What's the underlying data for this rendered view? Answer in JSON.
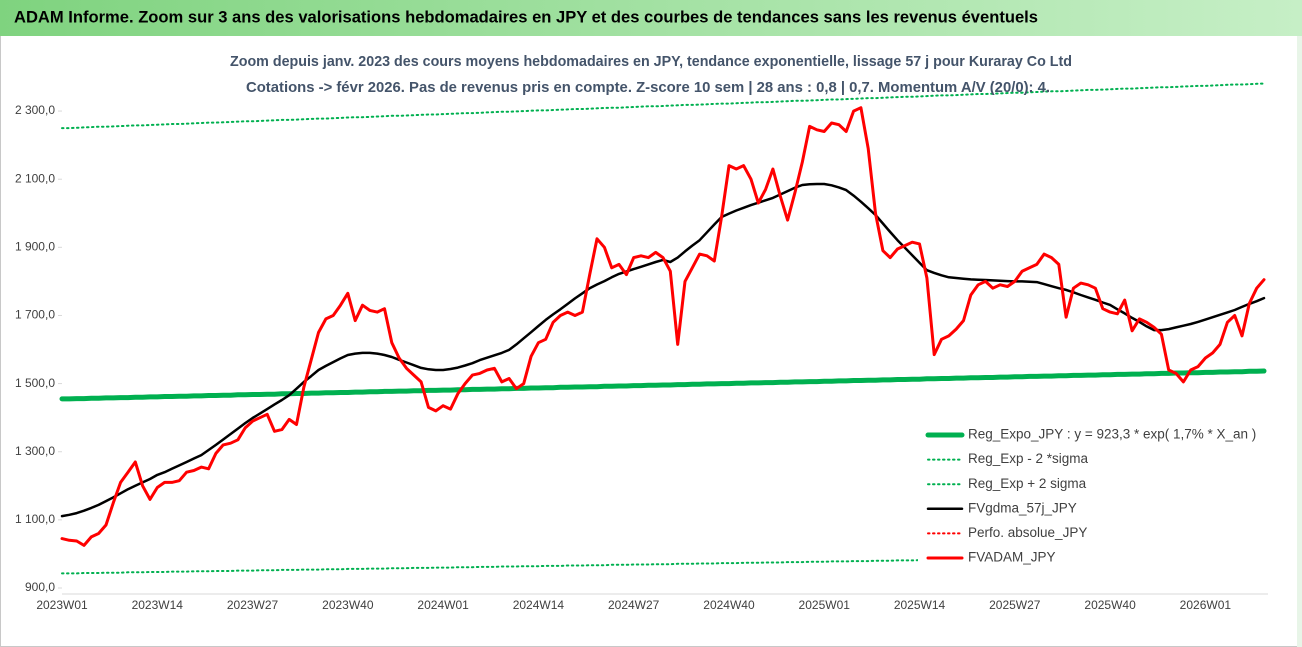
{
  "header": {
    "title": "ADAM Informe. Zoom sur 3 ans des valorisations hebdomadaires en JPY et des courbes de tendances sans les revenus éventuels"
  },
  "chart_data": {
    "type": "line",
    "title": "Zoom depuis janv. 2023 des cours moyens hebdomadaires en JPY, tendance exponentielle, lissage 57 j pour Kuraray Co Ltd",
    "subtitle": "Cotations -> févr 2026.  Pas de revenus pris en compte. Z-score 10 sem | 28 ans : 0,8 | 0,7. Momentum A/V (20/0): 4.",
    "categories": [
      "2023W01",
      null,
      null,
      null,
      null,
      null,
      null,
      null,
      null,
      null,
      null,
      null,
      null,
      "2023W14",
      null,
      null,
      null,
      null,
      null,
      null,
      null,
      null,
      null,
      null,
      null,
      null,
      "2023W27",
      null,
      null,
      null,
      null,
      null,
      null,
      null,
      null,
      null,
      null,
      null,
      null,
      "2023W40",
      null,
      null,
      null,
      null,
      null,
      null,
      null,
      null,
      null,
      null,
      null,
      null,
      "2024W01",
      null,
      null,
      null,
      null,
      null,
      null,
      null,
      null,
      null,
      null,
      null,
      null,
      "2024W14",
      null,
      null,
      null,
      null,
      null,
      null,
      null,
      null,
      null,
      null,
      null,
      null,
      "2024W27",
      null,
      null,
      null,
      null,
      null,
      null,
      null,
      null,
      null,
      null,
      null,
      null,
      "2024W40",
      null,
      null,
      null,
      null,
      null,
      null,
      null,
      null,
      null,
      null,
      null,
      null,
      "2025W01",
      null,
      null,
      null,
      null,
      null,
      null,
      null,
      null,
      null,
      null,
      null,
      null,
      "2025W14",
      null,
      null,
      null,
      null,
      null,
      null,
      null,
      null,
      null,
      null,
      null,
      null,
      "2025W27",
      null,
      null,
      null,
      null,
      null,
      null,
      null,
      null,
      null,
      null,
      null,
      null,
      "2025W40",
      null,
      null,
      null,
      null,
      null,
      null,
      null,
      null,
      null,
      null,
      null,
      null,
      "2026W01",
      null,
      null,
      null,
      null,
      null,
      null,
      null,
      null
    ],
    "ylim": [
      900,
      2400
    ],
    "yticks": [
      {
        "value": 900,
        "label": "900,0"
      },
      {
        "value": 1100,
        "label": "1 100,0"
      },
      {
        "value": 1300,
        "label": "1 300,0"
      },
      {
        "value": 1500,
        "label": "1 500,0"
      },
      {
        "value": 1700,
        "label": "1 700,0"
      },
      {
        "value": 1900,
        "label": "1 900,0"
      },
      {
        "value": 2100,
        "label": "2 100,0"
      },
      {
        "value": 2300,
        "label": "2 300,0"
      }
    ],
    "grid": false,
    "legend": "right",
    "series": [
      {
        "name": "Reg_Expo_JPY : y = 923,3 * exp( 1,7% *  X_an )",
        "color": "#00b050",
        "style": "solid",
        "width": 5,
        "values": [
          1455,
          1455,
          1456,
          1456,
          1457,
          1457,
          1458,
          1458,
          1459,
          1459,
          1460,
          1460,
          1461,
          1461,
          1462,
          1462,
          1463,
          1463,
          1464,
          1464,
          1465,
          1465,
          1466,
          1466,
          1467,
          1467,
          1468,
          1468,
          1469,
          1469,
          1470,
          1470,
          1471,
          1471,
          1472,
          1472,
          1473,
          1473,
          1474,
          1474,
          1475,
          1475,
          1476,
          1476,
          1477,
          1477,
          1478,
          1478,
          1479,
          1479,
          1480,
          1480,
          1481,
          1481,
          1482,
          1482,
          1483,
          1483,
          1484,
          1484,
          1485,
          1485,
          1486,
          1486,
          1487,
          1487,
          1488,
          1488,
          1489,
          1489,
          1490,
          1490,
          1491,
          1491,
          1492,
          1492,
          1493,
          1493,
          1494,
          1494,
          1495,
          1495,
          1496,
          1496,
          1497,
          1497,
          1498,
          1498,
          1499,
          1499,
          1500,
          1500,
          1501,
          1501,
          1502,
          1502,
          1503,
          1503,
          1504,
          1504,
          1505,
          1505,
          1506,
          1506,
          1507,
          1507,
          1508,
          1508,
          1509,
          1509,
          1510,
          1510,
          1511,
          1511,
          1512,
          1512,
          1513,
          1513,
          1514,
          1514,
          1515,
          1515,
          1516,
          1516,
          1517,
          1517,
          1518,
          1518,
          1519,
          1519,
          1520,
          1520,
          1521,
          1521,
          1522,
          1522,
          1523,
          1523,
          1524,
          1524,
          1525,
          1525,
          1526,
          1526,
          1527,
          1527,
          1528,
          1528,
          1529,
          1529,
          1530,
          1530,
          1531,
          1531,
          1532,
          1532,
          1533,
          1533,
          1534,
          1534,
          1535,
          1535,
          1536,
          1536,
          1537
        ]
      },
      {
        "name": "Reg_Exp - 2 *sigma",
        "color": "#00b050",
        "style": "dotted",
        "width": 2,
        "values": [
          943,
          943,
          943,
          944,
          944,
          944,
          945,
          945,
          945,
          946,
          946,
          946,
          947,
          947,
          947,
          948,
          948,
          948,
          949,
          949,
          949,
          950,
          950,
          950,
          951,
          951,
          951,
          952,
          952,
          952,
          953,
          953,
          953,
          954,
          954,
          954,
          955,
          955,
          955,
          956,
          956,
          956,
          957,
          957,
          957,
          958,
          958,
          958,
          959,
          959,
          959,
          960,
          960,
          960,
          961,
          961,
          961,
          962,
          962,
          962,
          963,
          963,
          963,
          964,
          964,
          964,
          965,
          965,
          965,
          966,
          966,
          966,
          967,
          967,
          967,
          968,
          968,
          968,
          969,
          969,
          969,
          970,
          970,
          970,
          971,
          971,
          971,
          972,
          972,
          972,
          973,
          973,
          973,
          974,
          974,
          974,
          975,
          975,
          975,
          976,
          976,
          976,
          977,
          977,
          977,
          978,
          978,
          978,
          979,
          979,
          979,
          980,
          980,
          980,
          981,
          981,
          981,
          982,
          982,
          982,
          983,
          983,
          983,
          984,
          984,
          984,
          985,
          985,
          985,
          986,
          986,
          986,
          987,
          987,
          987,
          988,
          988,
          988,
          989,
          989,
          989,
          990,
          990,
          990,
          991,
          991,
          991,
          992,
          992,
          992,
          993,
          993,
          993,
          994,
          994,
          994,
          995,
          995,
          995,
          996,
          996,
          996,
          997,
          997,
          997
        ]
      },
      {
        "name": "Reg_Exp + 2 sigma",
        "color": "#00b050",
        "style": "dotted",
        "width": 2,
        "values": [
          2250,
          2250,
          2251,
          2252,
          2253,
          2254,
          2254,
          2255,
          2256,
          2257,
          2258,
          2258,
          2259,
          2260,
          2261,
          2262,
          2262,
          2263,
          2264,
          2265,
          2266,
          2266,
          2267,
          2268,
          2269,
          2270,
          2270,
          2271,
          2272,
          2273,
          2274,
          2274,
          2275,
          2276,
          2277,
          2278,
          2278,
          2279,
          2280,
          2281,
          2282,
          2282,
          2283,
          2284,
          2285,
          2286,
          2286,
          2287,
          2288,
          2289,
          2290,
          2290,
          2291,
          2292,
          2293,
          2294,
          2294,
          2295,
          2296,
          2297,
          2298,
          2298,
          2299,
          2300,
          2301,
          2302,
          2302,
          2303,
          2304,
          2305,
          2306,
          2306,
          2307,
          2308,
          2309,
          2310,
          2310,
          2311,
          2312,
          2313,
          2314,
          2314,
          2315,
          2316,
          2317,
          2318,
          2318,
          2319,
          2320,
          2321,
          2322,
          2322,
          2323,
          2324,
          2325,
          2326,
          2326,
          2327,
          2328,
          2329,
          2330,
          2330,
          2331,
          2332,
          2333,
          2334,
          2334,
          2335,
          2336,
          2337,
          2338,
          2338,
          2339,
          2340,
          2341,
          2342,
          2342,
          2343,
          2344,
          2345,
          2346,
          2346,
          2347,
          2348,
          2349,
          2350,
          2350,
          2351,
          2352,
          2353,
          2354,
          2354,
          2355,
          2356,
          2357,
          2358,
          2358,
          2359,
          2360,
          2361,
          2362,
          2362,
          2363,
          2364,
          2365,
          2366,
          2366,
          2367,
          2368,
          2369,
          2370,
          2370,
          2371,
          2372,
          2373,
          2374,
          2374,
          2375,
          2376,
          2377,
          2378,
          2378,
          2379,
          2380,
          2381
        ]
      },
      {
        "name": "FVgdma_57j_JPY",
        "color": "#000000",
        "style": "solid",
        "width": 2.5,
        "values": [
          1111,
          1115,
          1120,
          1127,
          1135,
          1144,
          1155,
          1166,
          1178,
          1190,
          1200,
          1210,
          1220,
          1232,
          1240,
          1250,
          1260,
          1270,
          1280,
          1290,
          1305,
          1320,
          1336,
          1352,
          1368,
          1384,
          1399,
          1412,
          1425,
          1439,
          1452,
          1466,
          1485,
          1505,
          1522,
          1540,
          1552,
          1563,
          1574,
          1584,
          1588,
          1590,
          1590,
          1588,
          1584,
          1578,
          1570,
          1562,
          1554,
          1546,
          1542,
          1540,
          1540,
          1543,
          1547,
          1553,
          1560,
          1569,
          1576,
          1583,
          1590,
          1599,
          1615,
          1633,
          1651,
          1669,
          1687,
          1703,
          1718,
          1734,
          1750,
          1765,
          1780,
          1791,
          1801,
          1812,
          1822,
          1829,
          1836,
          1843,
          1850,
          1857,
          1863,
          1857,
          1870,
          1888,
          1905,
          1921,
          1944,
          1967,
          1989,
          1999,
          2008,
          2016,
          2024,
          2031,
          2038,
          2045,
          2055,
          2065,
          2075,
          2083,
          2085,
          2086,
          2086,
          2082,
          2076,
          2068,
          2052,
          2034,
          2015,
          1995,
          1970,
          1945,
          1921,
          1899,
          1877,
          1855,
          1833,
          1825,
          1818,
          1812,
          1810,
          1808,
          1806,
          1805,
          1804,
          1803,
          1802,
          1801,
          1800,
          1800,
          1799,
          1798,
          1792,
          1786,
          1780,
          1775,
          1768,
          1760,
          1753,
          1746,
          1738,
          1731,
          1718,
          1706,
          1693,
          1681,
          1668,
          1657,
          1657,
          1660,
          1665,
          1670,
          1675,
          1681,
          1688,
          1695,
          1702,
          1709,
          1716,
          1725,
          1734,
          1742,
          1751
        ]
      },
      {
        "name": "Perfo. absolue_JPY",
        "color": "#ff0000",
        "style": "dotted",
        "width": 2
      },
      {
        "name": "FVADAM_JPY",
        "color": "#ff0000",
        "style": "solid",
        "width": 3,
        "values": [
          1045,
          1040,
          1038,
          1025,
          1050,
          1060,
          1085,
          1150,
          1210,
          1240,
          1270,
          1200,
          1160,
          1195,
          1210,
          1210,
          1215,
          1240,
          1245,
          1255,
          1250,
          1295,
          1320,
          1325,
          1335,
          1370,
          1390,
          1400,
          1410,
          1360,
          1365,
          1395,
          1380,
          1490,
          1570,
          1650,
          1690,
          1700,
          1730,
          1765,
          1685,
          1730,
          1715,
          1710,
          1720,
          1620,
          1575,
          1545,
          1525,
          1505,
          1430,
          1420,
          1435,
          1425,
          1470,
          1500,
          1525,
          1530,
          1540,
          1545,
          1505,
          1515,
          1485,
          1500,
          1580,
          1620,
          1630,
          1680,
          1700,
          1710,
          1700,
          1710,
          1820,
          1925,
          1900,
          1840,
          1850,
          1820,
          1870,
          1875,
          1870,
          1885,
          1870,
          1830,
          1615,
          1800,
          1840,
          1880,
          1875,
          1860,
          1990,
          2140,
          2130,
          2140,
          2100,
          2030,
          2070,
          2130,
          2050,
          1980,
          2060,
          2150,
          2255,
          2245,
          2240,
          2265,
          2260,
          2240,
          2300,
          2310,
          2190,
          2000,
          1890,
          1870,
          1895,
          1905,
          1915,
          1910,
          1810,
          1585,
          1630,
          1640,
          1660,
          1685,
          1760,
          1790,
          1800,
          1780,
          1790,
          1785,
          1800,
          1830,
          1840,
          1850,
          1880,
          1870,
          1850,
          1695,
          1780,
          1795,
          1790,
          1780,
          1720,
          1710,
          1705,
          1745,
          1655,
          1690,
          1680,
          1665,
          1645,
          1540,
          1530,
          1505,
          1540,
          1550,
          1575,
          1590,
          1615,
          1680,
          1700,
          1640,
          1735,
          1780,
          1805
        ]
      }
    ]
  }
}
